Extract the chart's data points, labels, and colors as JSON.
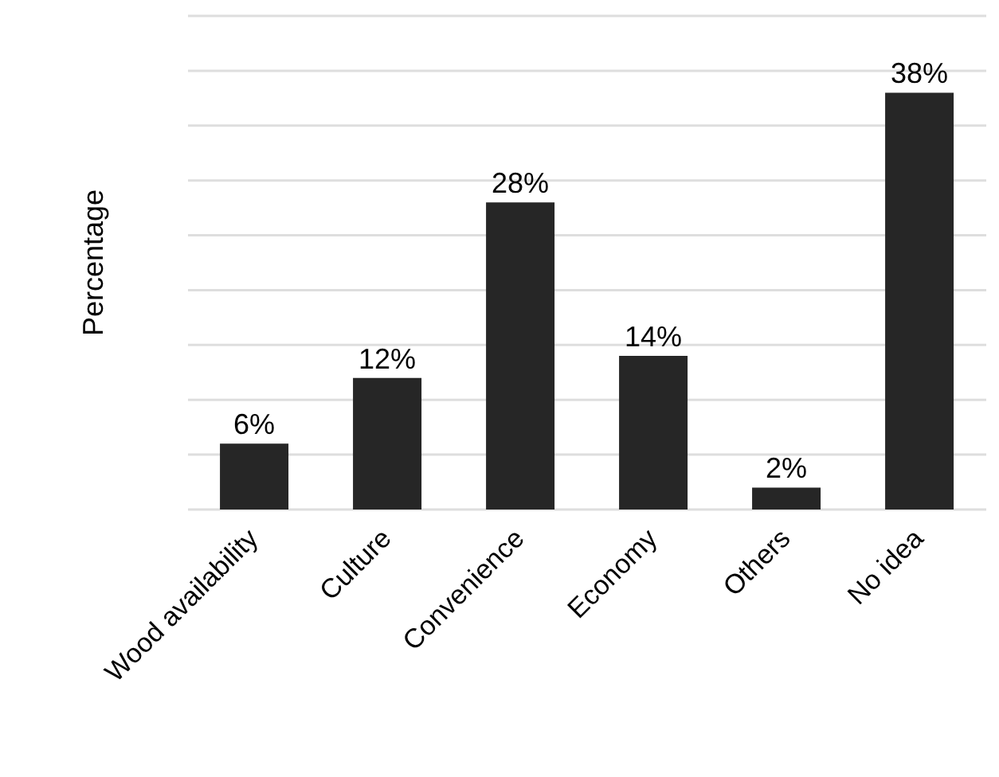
{
  "chart_data": {
    "type": "bar",
    "ylabel": "Percentage",
    "categories": [
      "Wood availability",
      "Culture",
      "Convenience",
      "Economy",
      "Others",
      "No idea"
    ],
    "values": [
      6,
      12,
      28,
      14,
      2,
      38
    ],
    "value_labels": [
      "6%",
      "12%",
      "28%",
      "14%",
      "2%",
      "38%"
    ],
    "color": "#262626",
    "ylim": [
      0,
      45
    ],
    "yticks": [
      {
        "value": 0,
        "label": null
      },
      {
        "value": 5,
        "label": null
      },
      {
        "value": 10,
        "label": null
      },
      {
        "value": 15,
        "label": null
      },
      {
        "value": 20,
        "label": null
      },
      {
        "value": 25,
        "label": null
      },
      {
        "value": 30,
        "label": null
      },
      {
        "value": 35,
        "label": null
      },
      {
        "value": 40,
        "label": null
      },
      {
        "value": 45,
        "label": null
      }
    ],
    "grid": "y",
    "tick_labels": "x"
  }
}
